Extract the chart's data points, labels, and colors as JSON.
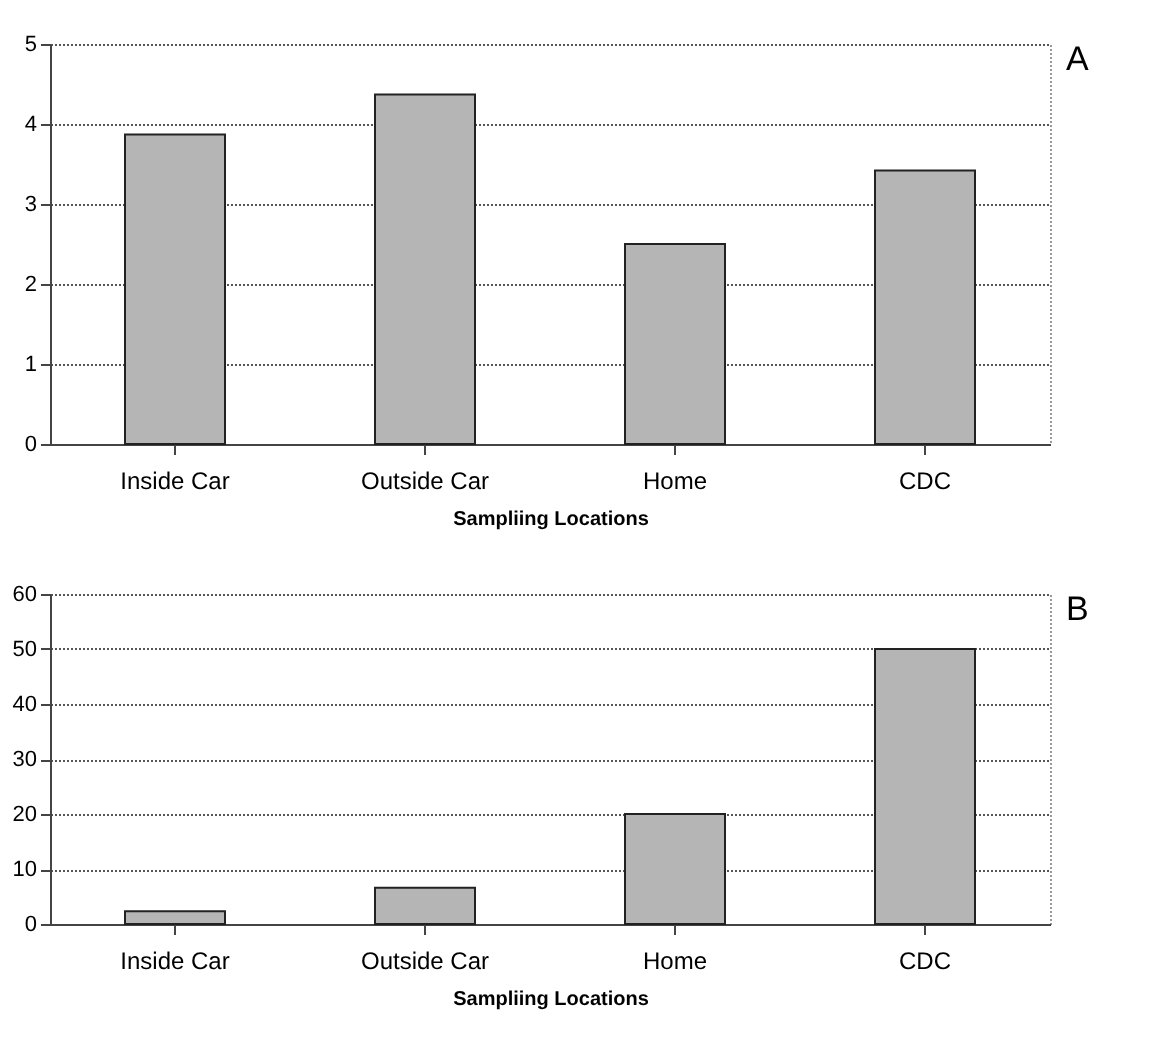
{
  "chart_data": [
    {
      "type": "bar",
      "xlabel": "Sampliing Locations",
      "categories": [
        "Inside Car",
        "Outside Car",
        "Home",
        "CDC"
      ],
      "values": [
        3.87,
        4.37,
        2.5,
        3.42
      ],
      "color": "#b5b5b5",
      "ylim": [
        0,
        5
      ],
      "yticks": [
        0,
        1,
        2,
        3,
        4,
        5
      ],
      "grid": "y",
      "annotations": [
        "A"
      ]
    },
    {
      "type": "bar",
      "xlabel": "Sampliing Locations",
      "categories": [
        "Inside Car",
        "Outside Car",
        "Home",
        "CDC"
      ],
      "values": [
        2.3,
        6.6,
        20,
        50
      ],
      "color": "#b5b5b5",
      "ylim": [
        0,
        60
      ],
      "yticks": [
        0,
        10,
        20,
        30,
        40,
        50,
        60
      ],
      "grid": "y",
      "annotations": [
        "B"
      ]
    }
  ]
}
